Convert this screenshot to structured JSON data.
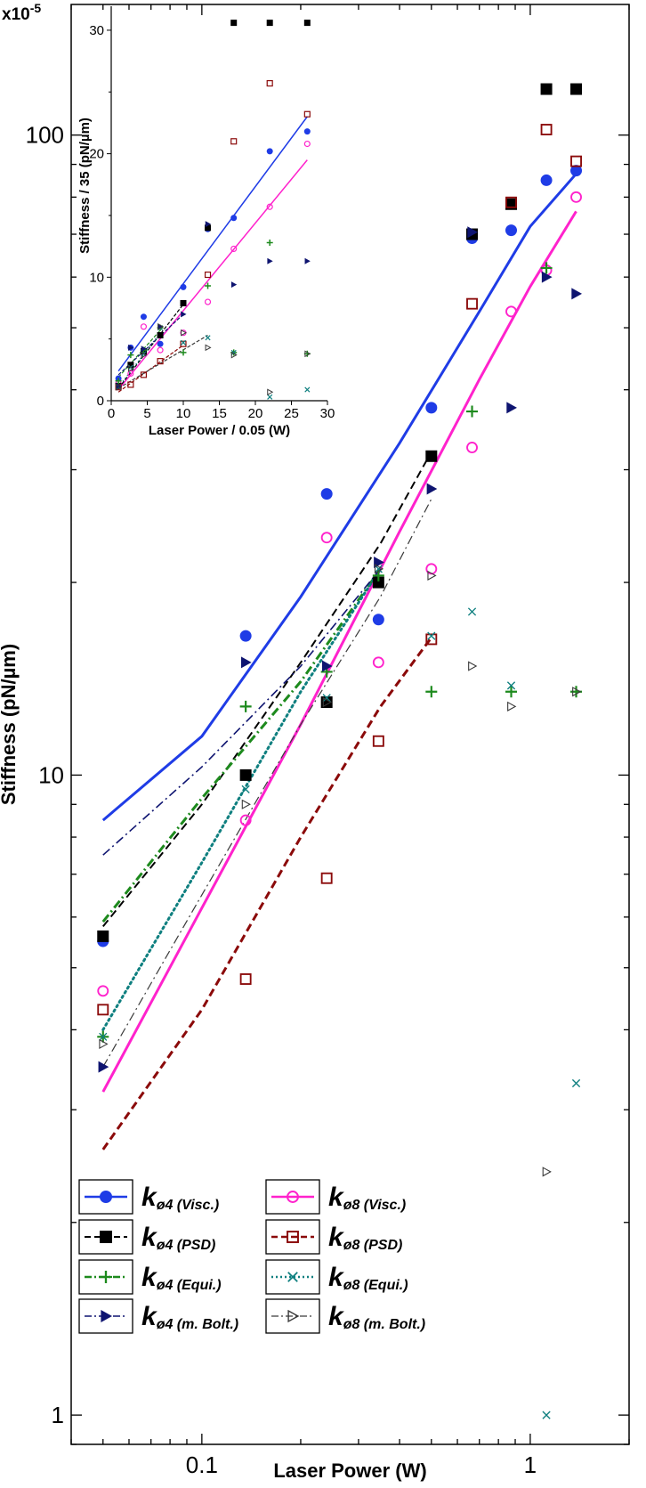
{
  "chart_data": [
    {
      "id": "main",
      "type": "scatter",
      "scale": "log-log",
      "xlabel": "Laser Power (W)",
      "ylabel": "Stiffness (pN/µm)",
      "multiplier": "x10",
      "multiplier_exp": "-5",
      "xlim": [
        0.04,
        2.0
      ],
      "ylim": [
        0.9,
        160
      ],
      "x_ticks": [
        {
          "value": 0.1,
          "label": "0.1"
        },
        {
          "value": 1,
          "label": "1"
        }
      ],
      "y_ticks": [
        {
          "value": 1,
          "label": "1"
        },
        {
          "value": 10,
          "label": "10"
        },
        {
          "value": 100,
          "label": "100"
        }
      ],
      "legend_position": "bottom-left",
      "series": [
        {
          "key": "v4",
          "name": "k",
          "sub": "ø4 (Visc.)",
          "color": "#1f3ce6",
          "marker": "filled-circle",
          "line": "solid",
          "line_width": 3,
          "points": [
            [
              0.05,
              5.5
            ],
            [
              0.136,
              16.5
            ],
            [
              0.24,
              27.5
            ],
            [
              0.345,
              17.5
            ],
            [
              0.5,
              37.5
            ],
            [
              0.665,
              69
            ],
            [
              0.875,
              71
            ],
            [
              1.12,
              85
            ],
            [
              1.38,
              88
            ]
          ],
          "fit": [
            [
              0.05,
              8.5
            ],
            [
              0.1,
              11.5
            ],
            [
              0.2,
              19
            ],
            [
              0.4,
              33
            ],
            [
              0.7,
              53
            ],
            [
              1.0,
              72
            ],
            [
              1.38,
              87
            ]
          ]
        },
        {
          "key": "v8",
          "name": "k",
          "sub": "ø8 (Visc.)",
          "color": "#ff22cc",
          "marker": "open-circle",
          "line": "solid",
          "line_width": 3,
          "points": [
            [
              0.05,
              4.6
            ],
            [
              0.136,
              8.5
            ],
            [
              0.24,
              23.5
            ],
            [
              0.345,
              15
            ],
            [
              0.5,
              21
            ],
            [
              0.665,
              32.5
            ],
            [
              0.875,
              53
            ],
            [
              1.12,
              61.5
            ],
            [
              1.38,
              80
            ]
          ],
          "fit": [
            [
              0.05,
              3.2
            ],
            [
              0.1,
              6.2
            ],
            [
              0.2,
              12
            ],
            [
              0.4,
              24
            ],
            [
              0.7,
              41.5
            ],
            [
              1.0,
              58
            ],
            [
              1.38,
              76
            ]
          ]
        },
        {
          "key": "p4",
          "name": "k",
          "sub": "ø4 (PSD)",
          "color": "#000000",
          "marker": "filled-square",
          "line": "dashed",
          "line_width": 2,
          "points": [
            [
              0.05,
              5.6
            ],
            [
              0.136,
              10
            ],
            [
              0.24,
              13
            ],
            [
              0.345,
              20
            ],
            [
              0.5,
              31.5
            ],
            [
              0.665,
              70
            ],
            [
              0.875,
              78
            ],
            [
              1.12,
              118
            ],
            [
              1.38,
              118
            ]
          ],
          "fit": [
            [
              0.05,
              5.8
            ],
            [
              0.1,
              9
            ],
            [
              0.2,
              15
            ],
            [
              0.35,
              23
            ],
            [
              0.5,
              32
            ]
          ]
        },
        {
          "key": "p8",
          "name": "k",
          "sub": "ø8 (PSD)",
          "color": "#8b0a0a",
          "marker": "open-square",
          "line": "dashed",
          "line_width": 3,
          "points": [
            [
              0.05,
              4.3
            ],
            [
              0.136,
              4.8
            ],
            [
              0.24,
              6.9
            ],
            [
              0.345,
              11.3
            ],
            [
              0.5,
              16.3
            ],
            [
              0.665,
              54.5
            ],
            [
              0.875,
              78.5
            ],
            [
              1.12,
              102
            ],
            [
              1.38,
              91
            ]
          ],
          "fit": [
            [
              0.05,
              2.6
            ],
            [
              0.1,
              4.3
            ],
            [
              0.2,
              8
            ],
            [
              0.35,
              12.8
            ],
            [
              0.5,
              16.4
            ]
          ]
        },
        {
          "key": "e4",
          "name": "k",
          "sub": "ø4 (Equi.)",
          "color": "#1d8a1d",
          "marker": "plus",
          "line": "dash-dot",
          "line_width": 3,
          "points": [
            [
              0.05,
              3.9
            ],
            [
              0.136,
              12.8
            ],
            [
              0.24,
              14.5
            ],
            [
              0.345,
              20.5
            ],
            [
              0.5,
              13.5
            ],
            [
              0.665,
              37
            ],
            [
              0.875,
              13.5
            ],
            [
              1.12,
              62
            ],
            [
              1.38,
              13.5
            ]
          ],
          "fit": [
            [
              0.05,
              5.9
            ],
            [
              0.1,
              9.2
            ],
            [
              0.2,
              14
            ],
            [
              0.35,
              21
            ]
          ]
        },
        {
          "key": "e8",
          "name": "k",
          "sub": "ø8 (Equi.)",
          "color": "#0e7f7f",
          "marker": "cross",
          "line": "dotted",
          "line_width": 3,
          "points": [
            [
              0.05,
              3.9
            ],
            [
              0.136,
              9.5
            ],
            [
              0.24,
              13.2
            ],
            [
              0.345,
              21
            ],
            [
              0.5,
              16.5
            ],
            [
              0.665,
              18
            ],
            [
              0.875,
              13.8
            ],
            [
              1.12,
              1.0
            ],
            [
              1.38,
              3.3
            ]
          ],
          "fit": [
            [
              0.05,
              4
            ],
            [
              0.1,
              7.3
            ],
            [
              0.2,
              13.5
            ],
            [
              0.35,
              21
            ]
          ]
        },
        {
          "key": "b4",
          "name": "k",
          "sub": "ø4 (m. Bolt.)",
          "color": "#0e1470",
          "marker": "filled-triangle-right",
          "line": "dash-dot",
          "line_width": 1.6,
          "points": [
            [
              0.05,
              3.5
            ],
            [
              0.136,
              15
            ],
            [
              0.24,
              14.8
            ],
            [
              0.345,
              21.5
            ],
            [
              0.5,
              28
            ],
            [
              0.665,
              70.5
            ],
            [
              0.875,
              37.5
            ],
            [
              1.12,
              60
            ],
            [
              1.38,
              56.5
            ]
          ],
          "fit": [
            [
              0.05,
              7.5
            ],
            [
              0.1,
              10.3
            ],
            [
              0.2,
              14.8
            ],
            [
              0.35,
              21
            ]
          ]
        },
        {
          "key": "b8",
          "name": "k",
          "sub": "ø8 (m. Bolt.)",
          "color": "#3a3a3a",
          "marker": "open-triangle-right",
          "line": "dash-dot",
          "line_width": 1.2,
          "points": [
            [
              0.05,
              3.8
            ],
            [
              0.136,
              9
            ],
            [
              0.24,
              13
            ],
            [
              0.345,
              21
            ],
            [
              0.5,
              20.5
            ],
            [
              0.665,
              14.8
            ],
            [
              0.875,
              12.8
            ],
            [
              1.12,
              2.4
            ],
            [
              1.38,
              13.5
            ]
          ],
          "fit": [
            [
              0.05,
              3.5
            ],
            [
              0.1,
              6.5
            ],
            [
              0.2,
              12
            ],
            [
              0.35,
              19
            ],
            [
              0.5,
              27
            ]
          ]
        }
      ]
    },
    {
      "id": "inset",
      "type": "scatter",
      "scale": "linear",
      "xlabel": "Laser Power / 0.05 (W)",
      "ylabel": "Stiffness / 35 (pN/µm)",
      "xlim": [
        0,
        30
      ],
      "ylim": [
        0,
        30.5
      ],
      "x_ticks": [
        0,
        5,
        10,
        15,
        20,
        25,
        30
      ],
      "y_ticks": [
        0,
        10,
        20,
        30
      ],
      "series": [
        {
          "key": "v4",
          "points": [
            [
              1,
              1.8
            ],
            [
              2.7,
              4.3
            ],
            [
              4.5,
              6.8
            ],
            [
              6.8,
              4.6
            ],
            [
              10,
              9.2
            ],
            [
              13.4,
              13.9
            ],
            [
              17,
              14.8
            ],
            [
              22,
              20.2
            ],
            [
              27.2,
              21.8
            ]
          ],
          "fit": [
            [
              1,
              2.4
            ],
            [
              27.2,
              23
            ]
          ]
        },
        {
          "key": "v8",
          "points": [
            [
              1,
              1.4
            ],
            [
              2.7,
              2.2
            ],
            [
              4.5,
              6
            ],
            [
              6.8,
              4.1
            ],
            [
              10,
              5.5
            ],
            [
              13.4,
              8
            ],
            [
              17,
              12.3
            ],
            [
              22,
              15.7
            ],
            [
              27.2,
              20.8
            ]
          ],
          "fit": [
            [
              1,
              0.9
            ],
            [
              27.2,
              19.5
            ]
          ]
        },
        {
          "key": "p4",
          "points": [
            [
              1,
              1.2
            ],
            [
              2.7,
              2.9
            ],
            [
              4.5,
              4
            ],
            [
              6.8,
              5.3
            ],
            [
              10,
              7.9
            ],
            [
              13.4,
              14
            ],
            [
              17,
              30.6
            ],
            [
              22,
              30.6
            ],
            [
              27.2,
              30.6
            ]
          ],
          "fit": [
            [
              1,
              1
            ],
            [
              10,
              7.8
            ]
          ]
        },
        {
          "key": "p8",
          "points": [
            [
              1,
              1.1
            ],
            [
              2.7,
              1.3
            ],
            [
              4.5,
              2.1
            ],
            [
              6.8,
              3.2
            ],
            [
              10,
              4.6
            ],
            [
              13.4,
              10.2
            ],
            [
              17,
              21
            ],
            [
              22,
              25.7
            ],
            [
              27.2,
              23.2
            ]
          ],
          "fit": [
            [
              1,
              0.7
            ],
            [
              10,
              4.5
            ]
          ]
        },
        {
          "key": "e4",
          "points": [
            [
              1,
              1.6
            ],
            [
              2.7,
              3.7
            ],
            [
              4.5,
              4.1
            ],
            [
              6.8,
              5.9
            ],
            [
              10,
              3.9
            ],
            [
              13.4,
              9.3
            ],
            [
              17,
              3.9
            ],
            [
              22,
              12.8
            ],
            [
              27.2,
              3.8
            ]
          ],
          "fit": [
            [
              1,
              1.9
            ],
            [
              6.8,
              5.7
            ]
          ]
        },
        {
          "key": "e8",
          "points": [
            [
              1,
              1.1
            ],
            [
              2.7,
              2.7
            ],
            [
              4.5,
              3.8
            ],
            [
              6.8,
              5.9
            ],
            [
              10,
              4.7
            ],
            [
              13.4,
              5.1
            ],
            [
              17,
              3.9
            ],
            [
              22,
              0.3
            ],
            [
              27.2,
              0.9
            ]
          ],
          "fit": [
            [
              1,
              1.1
            ],
            [
              6.8,
              5.5
            ]
          ]
        },
        {
          "key": "b4",
          "points": [
            [
              1,
              1.2
            ],
            [
              2.7,
              4.3
            ],
            [
              4.5,
              4.2
            ],
            [
              6.8,
              6
            ],
            [
              10,
              7
            ],
            [
              13.4,
              14.3
            ],
            [
              17,
              9.4
            ],
            [
              22,
              11.3
            ],
            [
              27.2,
              11.3
            ]
          ],
          "fit": [
            [
              1,
              2.1
            ],
            [
              10,
              7
            ]
          ]
        },
        {
          "key": "b8",
          "points": [
            [
              1,
              1.1
            ],
            [
              2.7,
              2.6
            ],
            [
              4.5,
              3.7
            ],
            [
              6.8,
              6
            ],
            [
              10,
              5.5
            ],
            [
              13.4,
              4.3
            ],
            [
              17,
              3.7
            ],
            [
              22,
              0.7
            ],
            [
              27.2,
              3.8
            ]
          ],
          "fit": [
            [
              1,
              1
            ],
            [
              13.4,
              5.3
            ]
          ]
        }
      ]
    }
  ]
}
